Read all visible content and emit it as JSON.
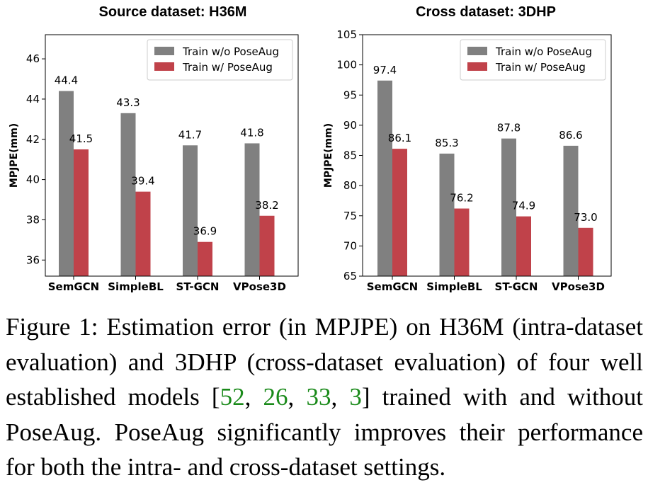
{
  "chart_data": [
    {
      "type": "bar",
      "title": "Source dataset: H36M",
      "ylabel": "MPJPE(mm)",
      "ylim": [
        35.2,
        47.2
      ],
      "yticks": [
        36,
        38,
        40,
        42,
        44,
        46
      ],
      "categories": [
        "SemGCN",
        "SimpleBL",
        "ST-GCN",
        "VPose3D"
      ],
      "series": [
        {
          "name": "Train w/o PoseAug",
          "color": "#808080",
          "values": [
            44.4,
            43.3,
            41.7,
            41.8
          ],
          "labels": [
            "44.4",
            "43.3",
            "41.7",
            "41.8"
          ]
        },
        {
          "name": "Train w/   PoseAug",
          "color": "#c0424a",
          "values": [
            41.5,
            39.4,
            36.9,
            38.2
          ],
          "labels": [
            "41.5",
            "39.4",
            "36.9",
            "38.2"
          ]
        }
      ],
      "legend": "top-right",
      "grid": false
    },
    {
      "type": "bar",
      "title": "Cross dataset: 3DHP",
      "ylabel": "MPJPE(mm)",
      "ylim": [
        65,
        105
      ],
      "yticks": [
        65,
        70,
        75,
        80,
        85,
        90,
        95,
        100,
        105
      ],
      "categories": [
        "SemGCN",
        "SimpleBL",
        "ST-GCN",
        "VPose3D"
      ],
      "series": [
        {
          "name": "Train w/o PoseAug",
          "color": "#808080",
          "values": [
            97.4,
            85.3,
            87.8,
            86.6
          ],
          "labels": [
            "97.4",
            "85.3",
            "87.8",
            "86.6"
          ]
        },
        {
          "name": "Train w/   PoseAug",
          "color": "#c0424a",
          "values": [
            86.1,
            76.2,
            74.9,
            73.0
          ],
          "labels": [
            "86.1",
            "76.2",
            "74.9",
            "73.0"
          ]
        }
      ],
      "legend": "top-right",
      "grid": false
    }
  ],
  "caption": {
    "prefix": "Figure 1:  Estimation error (in MPJPE) on H36M (intra-dataset evaluation) and 3DHP (cross-dataset evaluation) of four well established models [",
    "refs": [
      "52",
      "26",
      "33",
      "3"
    ],
    "ref_color": "#1a8a1a",
    "suffix": "] trained with and without PoseAug. PoseAug significantly improves their performance for both the intra- and cross-dataset settings."
  }
}
